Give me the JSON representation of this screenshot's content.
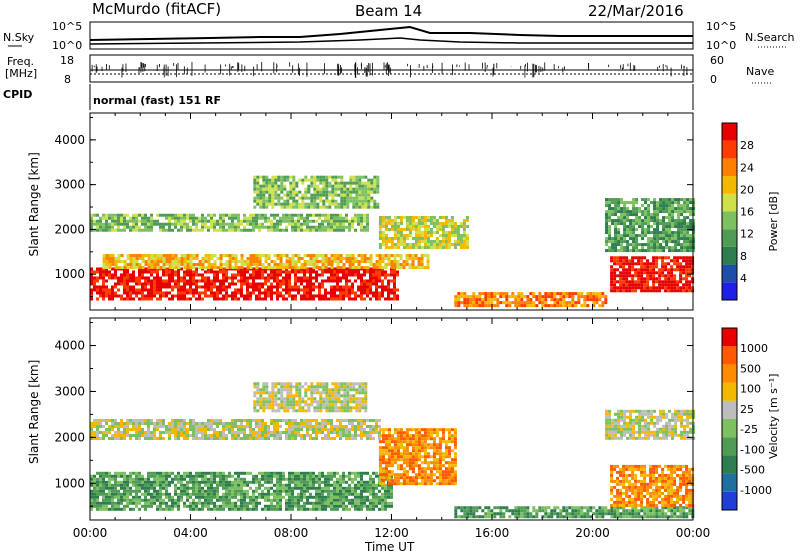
{
  "header": {
    "station": "McMurdo (fitACF)",
    "beam": "Beam 14",
    "date": "22/Mar/2016"
  },
  "strip": {
    "nsky_label": "N.Sky",
    "nsky_top": "10^5",
    "nsky_bottom": "10^0",
    "nsearch_label": "N.Search",
    "nsearch_top": "10^5",
    "nsearch_bottom": "10^0",
    "freq_label_1": "Freq.",
    "freq_label_2": "[MHz]",
    "freq_top": "18",
    "freq_bottom": "8",
    "nave_label": "Nave",
    "nave_top": "60",
    "nave_bottom": "0",
    "cpid_label": "CPID",
    "cpid_text": "normal (fast) 151 RF"
  },
  "chart_data": [
    {
      "type": "heatmap",
      "name": "power-panel",
      "ylabel": "Slant Range [km]",
      "y_ticks": [
        "1000",
        "2000",
        "3000",
        "4000"
      ],
      "ylim": [
        200,
        4600
      ],
      "x_ticks": [
        "00:00",
        "04:00",
        "08:00",
        "12:00",
        "16:00",
        "20:00",
        "00:00"
      ],
      "xlabel": "Time UT",
      "colorbar": {
        "label": "Power [dB]",
        "ticks": [
          "4",
          "8",
          "12",
          "16",
          "20",
          "24",
          "28"
        ],
        "colors": [
          "#1f1fe6",
          "#1e4fa8",
          "#2e7d4f",
          "#4f9c54",
          "#7cc060",
          "#cfe04a",
          "#f5b800",
          "#ff7f00",
          "#ff3b00",
          "#e60000"
        ]
      },
      "bands": [
        {
          "t0": 0.0,
          "t1": 12.2,
          "r0": 450,
          "r1": 1150,
          "level": 9
        },
        {
          "t0": 0.5,
          "t1": 13.5,
          "r0": 1150,
          "r1": 1450,
          "level": 6
        },
        {
          "t0": 0.0,
          "t1": 11.0,
          "r0": 2000,
          "r1": 2350,
          "level": 4
        },
        {
          "t0": 6.5,
          "t1": 11.5,
          "r0": 2500,
          "r1": 3200,
          "level": 4
        },
        {
          "t0": 11.5,
          "t1": 15.0,
          "r0": 1600,
          "r1": 2300,
          "level": 5
        },
        {
          "t0": 14.5,
          "t1": 20.5,
          "r0": 300,
          "r1": 600,
          "level": 7
        },
        {
          "t0": 20.7,
          "t1": 24.0,
          "r0": 600,
          "r1": 1400,
          "level": 9
        },
        {
          "t0": 20.5,
          "t1": 24.0,
          "r0": 1500,
          "r1": 2700,
          "level": 3
        }
      ]
    },
    {
      "type": "heatmap",
      "name": "velocity-panel",
      "ylabel": "Slant Range [km]",
      "y_ticks": [
        "1000",
        "2000",
        "3000",
        "4000"
      ],
      "ylim": [
        200,
        4600
      ],
      "x_ticks": [
        "00:00",
        "04:00",
        "08:00",
        "12:00",
        "16:00",
        "20:00",
        "00:00"
      ],
      "xlabel": "Time UT",
      "colorbar": {
        "label": "Velocity [m s⁻¹]",
        "ticks": [
          "1000",
          "500",
          "100",
          "25",
          "-25",
          "-100",
          "-500",
          "-1000"
        ],
        "colors": [
          "#1f3fd6",
          "#1f6fa0",
          "#2e7d4f",
          "#4f9c54",
          "#7cc060",
          "#bdbdbd",
          "#f5b800",
          "#ff8c00",
          "#ff5a00",
          "#e60000"
        ]
      },
      "bands": [
        {
          "t0": 0.0,
          "t1": 12.0,
          "r0": 450,
          "r1": 1250,
          "level": 3
        },
        {
          "t0": 0.0,
          "t1": 11.5,
          "r0": 2000,
          "r1": 2400,
          "level": 5
        },
        {
          "t0": 11.5,
          "t1": 14.5,
          "r0": 1000,
          "r1": 2200,
          "level": 7
        },
        {
          "t0": 14.5,
          "t1": 24.0,
          "r0": 250,
          "r1": 500,
          "level": 3
        },
        {
          "t0": 20.7,
          "t1": 24.0,
          "r0": 500,
          "r1": 1400,
          "level": 7
        },
        {
          "t0": 20.5,
          "t1": 24.0,
          "r0": 2000,
          "r1": 2600,
          "level": 5
        },
        {
          "t0": 6.5,
          "t1": 11.0,
          "r0": 2600,
          "r1": 3200,
          "level": 5
        }
      ]
    }
  ]
}
